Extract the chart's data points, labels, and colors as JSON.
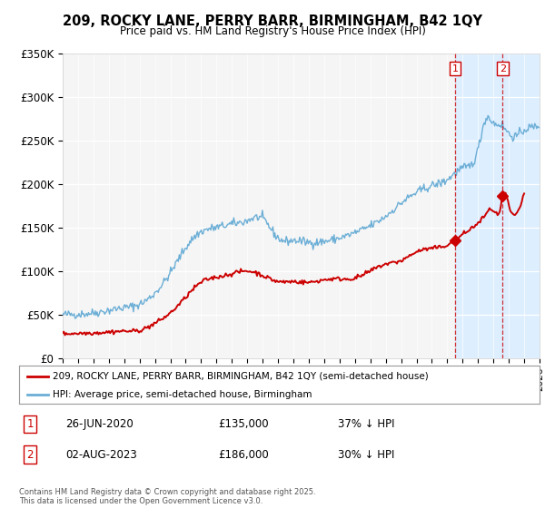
{
  "title": "209, ROCKY LANE, PERRY BARR, BIRMINGHAM, B42 1QY",
  "subtitle": "Price paid vs. HM Land Registry's House Price Index (HPI)",
  "ylabel_ticks": [
    "£0",
    "£50K",
    "£100K",
    "£150K",
    "£200K",
    "£250K",
    "£300K",
    "£350K"
  ],
  "ylabel_values": [
    0,
    50000,
    100000,
    150000,
    200000,
    250000,
    300000,
    350000
  ],
  "ylim": [
    0,
    350000
  ],
  "xlim_start": 1995,
  "xlim_end": 2026,
  "hpi_color": "#6baed6",
  "price_color": "#cc0000",
  "shade_color": "#ddeeff",
  "marker1_year": 2020.5,
  "marker1_price": 135000,
  "marker2_year": 2023.6,
  "marker2_price": 186000,
  "legend_label_price": "209, ROCKY LANE, PERRY BARR, BIRMINGHAM, B42 1QY (semi-detached house)",
  "legend_label_hpi": "HPI: Average price, semi-detached house, Birmingham",
  "annotation1_label": "1",
  "annotation1_date": "26-JUN-2020",
  "annotation1_price": "£135,000",
  "annotation1_pct": "37% ↓ HPI",
  "annotation2_label": "2",
  "annotation2_date": "02-AUG-2023",
  "annotation2_price": "£186,000",
  "annotation2_pct": "30% ↓ HPI",
  "footer": "Contains HM Land Registry data © Crown copyright and database right 2025.\nThis data is licensed under the Open Government Licence v3.0.",
  "bg_color": "#ffffff",
  "plot_bg_color": "#f5f5f5"
}
